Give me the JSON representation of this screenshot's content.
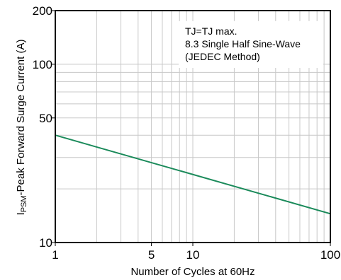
{
  "chart_data": {
    "type": "line",
    "title": "",
    "xlabel": "Number of Cycles at 60Hz",
    "ylabel_prefix": "I",
    "ylabel_subscript": "PSM",
    "ylabel_rest": "-Peak Forward Surge Current (A)",
    "x_scale": "log",
    "y_scale": "log",
    "xlim": [
      1,
      100
    ],
    "ylim": [
      10,
      200
    ],
    "x_tick_labels": [
      {
        "value": 1,
        "label": "1"
      },
      {
        "value": 5,
        "label": "5"
      },
      {
        "value": 10,
        "label": "10"
      },
      {
        "value": 100,
        "label": "100"
      }
    ],
    "y_tick_labels": [
      {
        "value": 10,
        "label": "10"
      },
      {
        "value": 50,
        "label": "50"
      },
      {
        "value": 100,
        "label": "100"
      },
      {
        "value": 200,
        "label": "200"
      }
    ],
    "x_gridlines": [
      2,
      3,
      4,
      5,
      6,
      7,
      8,
      9,
      10,
      20,
      30,
      40,
      50,
      60,
      70,
      80,
      90
    ],
    "y_gridlines": [
      20,
      30,
      40,
      50,
      60,
      70,
      80,
      90,
      100
    ],
    "grid": true,
    "series": [
      {
        "color": "#1a8a5a",
        "x": [
          1,
          100
        ],
        "y": [
          40,
          14.5
        ]
      }
    ],
    "annotation": {
      "lines": [
        "TJ=TJ max.",
        "8.3 Single Half Sine-Wave",
        "(JEDEC Method)"
      ],
      "placement": "top-right"
    }
  }
}
